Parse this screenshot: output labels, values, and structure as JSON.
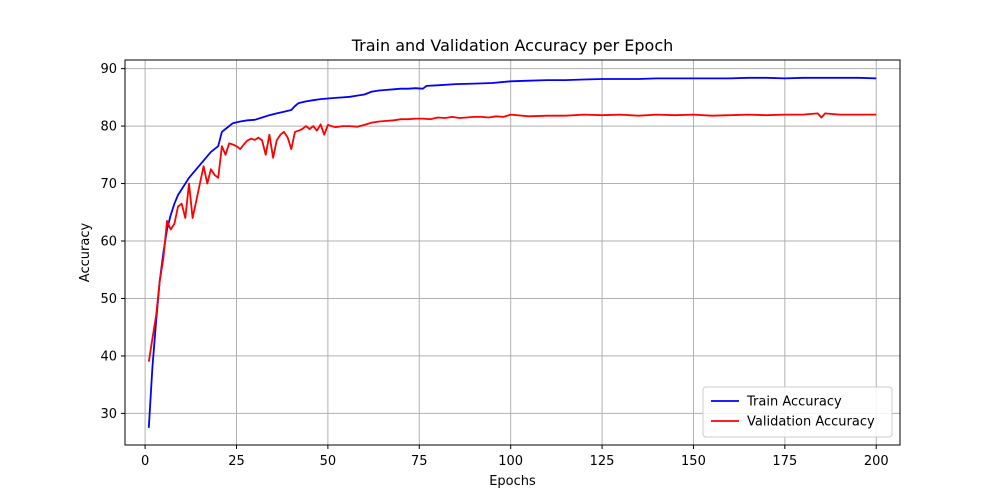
{
  "chart_data": {
    "type": "line",
    "title": "Train and Validation Accuracy per Epoch",
    "xlabel": "Epochs",
    "ylabel": "Accuracy",
    "xlim": [
      -5.5,
      206.5
    ],
    "ylim": [
      24.5,
      91.5
    ],
    "xticks": [
      0,
      25,
      50,
      75,
      100,
      125,
      150,
      175,
      200
    ],
    "yticks": [
      30,
      40,
      50,
      60,
      70,
      80,
      90
    ],
    "grid": true,
    "legend_position": "lower-right",
    "series": [
      {
        "name": "Train Accuracy",
        "color": "#0000ff",
        "x": [
          1,
          2,
          3,
          4,
          5,
          6,
          7,
          8,
          9,
          10,
          12,
          14,
          16,
          18,
          20,
          21,
          22,
          24,
          26,
          28,
          30,
          32,
          34,
          36,
          38,
          40,
          41,
          42,
          44,
          46,
          48,
          50,
          52,
          54,
          56,
          58,
          60,
          62,
          64,
          66,
          68,
          70,
          72,
          74,
          76,
          77,
          80,
          85,
          90,
          95,
          100,
          105,
          110,
          115,
          120,
          125,
          130,
          135,
          140,
          145,
          150,
          155,
          160,
          165,
          170,
          175,
          180,
          185,
          190,
          195,
          200
        ],
        "y": [
          27.5,
          38,
          46,
          53,
          58,
          62,
          64.5,
          66.5,
          68,
          69,
          71,
          72.5,
          74,
          75.5,
          76.5,
          79,
          79.5,
          80.5,
          80.8,
          81,
          81.1,
          81.5,
          81.9,
          82.2,
          82.5,
          82.8,
          83.5,
          84,
          84.3,
          84.5,
          84.7,
          84.8,
          84.9,
          85,
          85.1,
          85.3,
          85.5,
          86,
          86.2,
          86.3,
          86.4,
          86.5,
          86.5,
          86.6,
          86.5,
          87,
          87.1,
          87.3,
          87.4,
          87.5,
          87.8,
          87.9,
          88,
          88,
          88.1,
          88.2,
          88.2,
          88.2,
          88.3,
          88.3,
          88.3,
          88.3,
          88.3,
          88.4,
          88.4,
          88.3,
          88.4,
          88.4,
          88.4,
          88.4,
          88.3
        ]
      },
      {
        "name": "Validation Accuracy",
        "color": "#ff0000",
        "x": [
          1,
          2,
          3,
          4,
          5,
          6,
          7,
          8,
          9,
          10,
          11,
          12,
          13,
          14,
          15,
          16,
          17,
          18,
          19,
          20,
          21,
          22,
          23,
          24,
          25,
          26,
          27,
          28,
          29,
          30,
          31,
          32,
          33,
          34,
          35,
          36,
          37,
          38,
          39,
          40,
          41,
          42,
          43,
          44,
          45,
          46,
          47,
          48,
          49,
          50,
          52,
          54,
          56,
          58,
          60,
          62,
          64,
          66,
          68,
          70,
          72,
          74,
          76,
          78,
          80,
          82,
          84,
          86,
          88,
          90,
          92,
          94,
          96,
          98,
          100,
          105,
          110,
          115,
          120,
          125,
          130,
          135,
          140,
          145,
          150,
          155,
          160,
          165,
          170,
          175,
          180,
          184,
          185,
          186,
          190,
          195,
          200
        ],
        "y": [
          39,
          43,
          47,
          53,
          57,
          63.5,
          62,
          63,
          66,
          66.5,
          64,
          70,
          64,
          67,
          70,
          73,
          70,
          72.5,
          71.5,
          71,
          76.5,
          75,
          77,
          76.8,
          76.5,
          76,
          76.8,
          77.5,
          77.8,
          77.6,
          78,
          77.5,
          75,
          78.5,
          74.5,
          77.5,
          78.5,
          79,
          78,
          76,
          79,
          79.2,
          79.5,
          80,
          79.5,
          80,
          79.2,
          80.3,
          78.5,
          80.2,
          79.8,
          80,
          80,
          79.9,
          80.2,
          80.6,
          80.8,
          80.9,
          81,
          81.2,
          81.2,
          81.3,
          81.3,
          81.2,
          81.5,
          81.4,
          81.6,
          81.4,
          81.5,
          81.6,
          81.6,
          81.5,
          81.7,
          81.6,
          82,
          81.7,
          81.8,
          81.8,
          82,
          81.9,
          82,
          81.8,
          82,
          81.9,
          82,
          81.8,
          81.9,
          82,
          81.9,
          82,
          82,
          82.2,
          81.5,
          82.2,
          82,
          82,
          82
        ]
      }
    ]
  }
}
